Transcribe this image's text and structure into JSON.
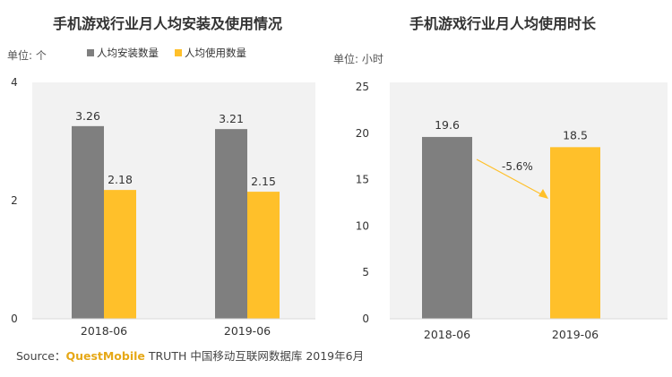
{
  "colors": {
    "gray": "#7f7f7f",
    "yellow": "#ffc02a",
    "axis": "#d9d9d9",
    "panel_bg": "#f2f2f2",
    "arrow": "#ffc02a",
    "brand": "#e6a817"
  },
  "chart_data": [
    {
      "type": "bar",
      "title": "手机游戏行业月人均安装及使用情况",
      "unit_label": "单位: 个",
      "categories": [
        "2018-06",
        "2019-06"
      ],
      "series": [
        {
          "name": "人均安装数量",
          "values": [
            3.26,
            3.21
          ],
          "color": "#7f7f7f"
        },
        {
          "name": "人均使用数量",
          "values": [
            2.18,
            2.15
          ],
          "color": "#ffc02a"
        }
      ],
      "data_labels": [
        [
          "3.26",
          "3.21"
        ],
        [
          "2.18",
          "2.15"
        ]
      ],
      "ylim": [
        0,
        4
      ],
      "yticks": [
        0,
        2,
        4
      ],
      "ytick_labels": [
        "0",
        "2",
        "4"
      ],
      "grid": false,
      "legend_position": "top-left"
    },
    {
      "type": "bar",
      "title": "手机游戏行业月人均使用时长",
      "unit_label": "单位: 小时",
      "categories": [
        "2018-06",
        "2019-06"
      ],
      "values": [
        19.6,
        18.5
      ],
      "colors": [
        "#7f7f7f",
        "#ffc02a"
      ],
      "data_labels": [
        "19.6",
        "18.5"
      ],
      "annotation": "-5.6%",
      "ylim": [
        0,
        25
      ],
      "yticks": [
        0,
        5,
        10,
        15,
        20,
        25
      ],
      "ytick_labels": [
        "0",
        "5",
        "10",
        "15",
        "20",
        "25"
      ],
      "grid": false
    }
  ],
  "footer": {
    "prefix": "Source：",
    "brand": "QuestMobile",
    "rest": " TRUTH 中国移动互联网数据库 2019年6月"
  }
}
